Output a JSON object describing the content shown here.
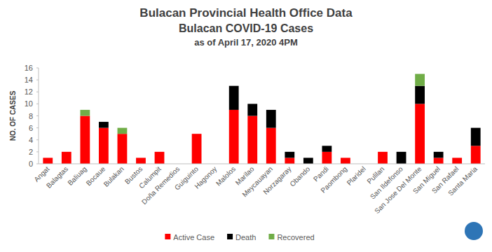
{
  "chart_data": {
    "type": "bar",
    "title": "Bulacan Provincial Health Office Data",
    "subtitle": [
      "Bulacan COVID-19 Cases",
      "as of April 17, 2020 4PM"
    ],
    "y_label": "NO. OF CASES",
    "categories": [
      "Angat",
      "Balagtas",
      "Baliuag",
      "Bocaue",
      "Bulakan",
      "Bustos",
      "Calumpit",
      "Doña Remedios",
      "Guiguinto",
      "Hagonoy",
      "Malolos",
      "Marilao",
      "Meycauayan",
      "Norzagaray",
      "Obando",
      "Pandi",
      "Paombong",
      "Plaridel",
      "Pulilan",
      "San Ildefonso",
      "San Jose Del Monte",
      "San Miguel",
      "San Rafael",
      "Santa Maria"
    ],
    "series": [
      {
        "name": "Active Case",
        "color": "#ff0000",
        "values": [
          1,
          2,
          8,
          6,
          5,
          1,
          2,
          0,
          5,
          0,
          9,
          8,
          6,
          1,
          0,
          2,
          1,
          0,
          2,
          0,
          10,
          1,
          1,
          3
        ]
      },
      {
        "name": "Death",
        "color": "#000000",
        "values": [
          0,
          0,
          0,
          1,
          0,
          0,
          0,
          0,
          0,
          0,
          4,
          2,
          3,
          1,
          1,
          1,
          0,
          0,
          0,
          2,
          3,
          1,
          0,
          3
        ]
      },
      {
        "name": "Recovered",
        "color": "#70ad47",
        "values": [
          0,
          0,
          1,
          0,
          1,
          0,
          0,
          0,
          0,
          0,
          0,
          0,
          0,
          0,
          0,
          0,
          0,
          0,
          0,
          0,
          2,
          0,
          0,
          0
        ]
      }
    ],
    "stacked": true,
    "ylim": [
      0,
      16
    ],
    "yticks": [
      0,
      2,
      4,
      6,
      8,
      10,
      12,
      14,
      16
    ],
    "grid": false,
    "legend": "bottom"
  }
}
